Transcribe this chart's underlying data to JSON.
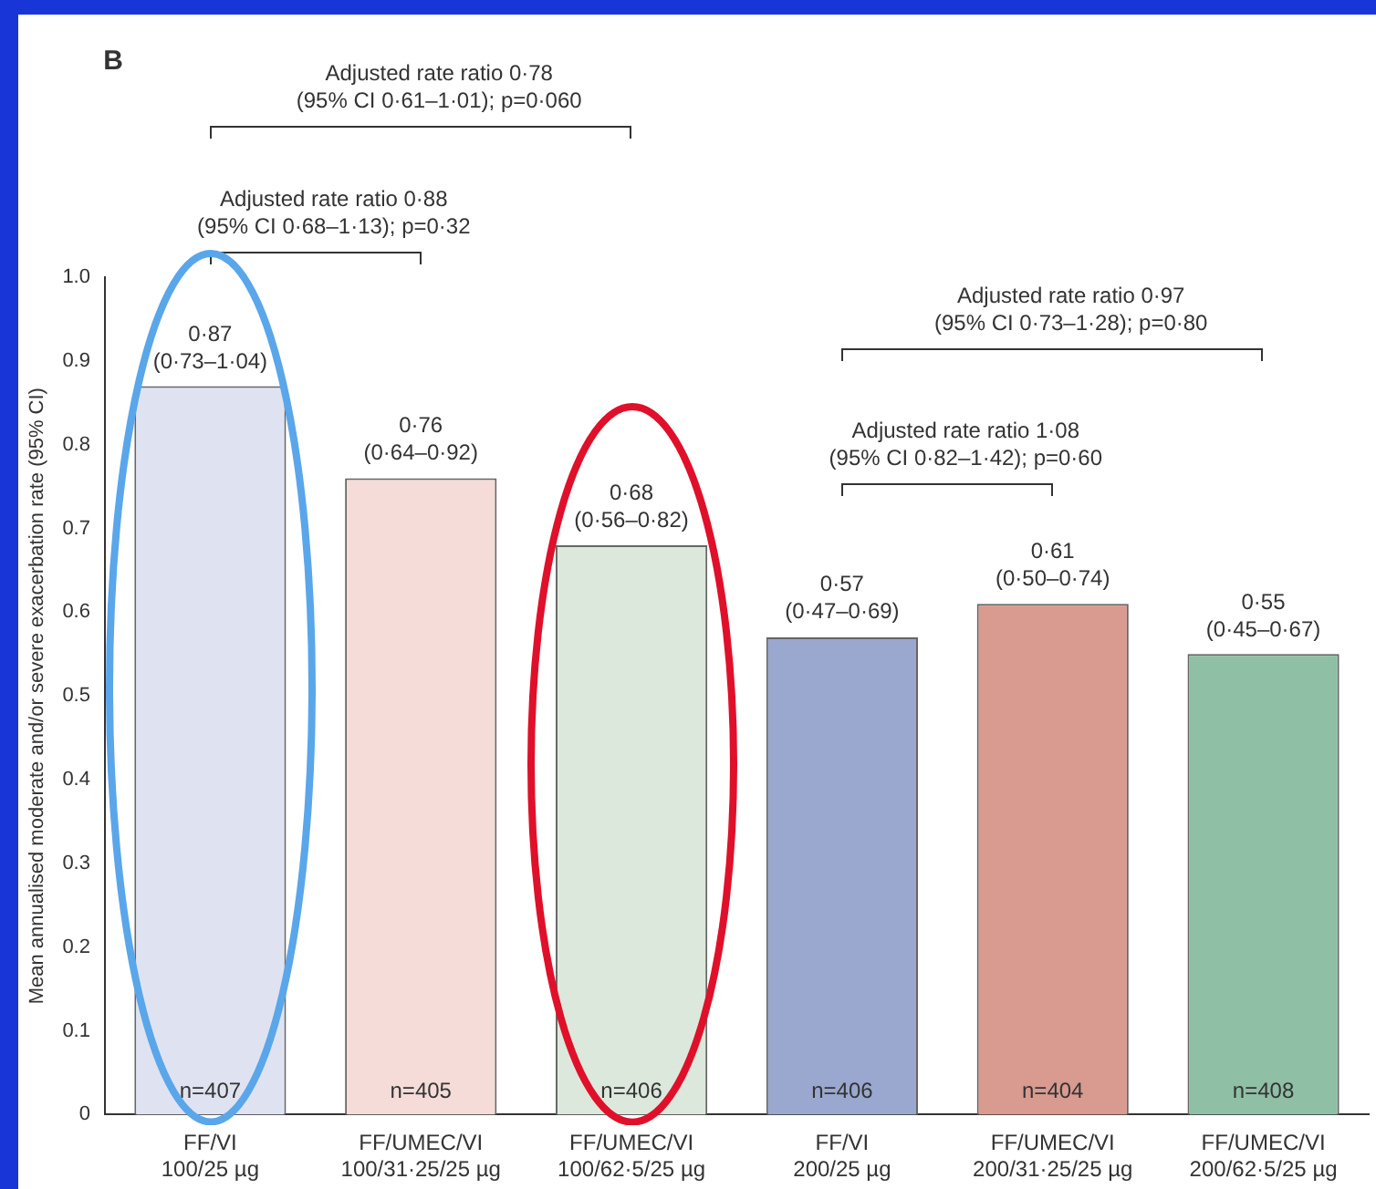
{
  "chart_data": {
    "type": "bar",
    "ylabel": "Mean annualised moderate and/or severe exacerbation rate (95% CI)",
    "categories": [
      "FF/VI\n100/25 µg",
      "FF/UMEC/VI\n100/31·25/25 µg",
      "FF/UMEC/VI\n100/62·5/25 µg",
      "FF/VI\n200/25 µg",
      "FF/UMEC/VI\n200/31·25/25 µg",
      "FF/UMEC/VI\n200/62·5/25 µg"
    ],
    "values": [
      0.87,
      0.76,
      0.68,
      0.57,
      0.61,
      0.55
    ],
    "colors": [
      "#dfe3f1",
      "#f5dcd8",
      "#dde8dc",
      "#9aa8d0",
      "#d99a90",
      "#8fbfa5"
    ],
    "ylim": [
      0,
      1.0
    ],
    "yticks": [
      0,
      0.1,
      0.2,
      0.3,
      0.4,
      0.5,
      0.6,
      0.7,
      0.8,
      0.9,
      {
        "value": 1.0,
        "label": "1.0"
      }
    ],
    "annotations": [
      "B",
      "Adjusted rate ratio 0·78\n(95% CI 0·61–1·01); p=0·060",
      "Adjusted rate ratio 0·88\n(95% CI 0·68–1·13); p=0·32",
      "Adjusted rate ratio 0·97\n(95% CI 0·73–1·28); p=0·80",
      "Adjusted rate ratio 1·08\n(95% CI 0·82–1·42); p=0·60",
      "n=407",
      "n=405",
      "n=406",
      "n=406",
      "n=404",
      "n=408",
      {
        "text": "0·87\n(0·73–1·04)",
        "x": "FF/VI\n100/25 µg",
        "y": 0.87
      },
      {
        "text": "0·76\n(0·64–0·92)",
        "x": "FF/UMEC/VI\n100/31·25/25 µg",
        "y": 0.76
      },
      {
        "text": "0·68\n(0·56–0·82)",
        "x": "FF/UMEC/VI\n100/62·5/25 µg",
        "y": 0.68
      },
      {
        "text": "0·57\n(0·47–0·69)",
        "x": "FF/VI\n200/25 µg",
        "y": 0.57
      },
      {
        "text": "0·61\n(0·50–0·74)",
        "x": "FF/UMEC/VI\n200/31·25/25 µg",
        "y": 0.61
      },
      {
        "text": "0·55\n(0·45–0·67)",
        "x": "FF/UMEC/VI\n200/62·5/25 µg",
        "y": 0.55
      }
    ],
    "grid": false,
    "legend": false
  }
}
